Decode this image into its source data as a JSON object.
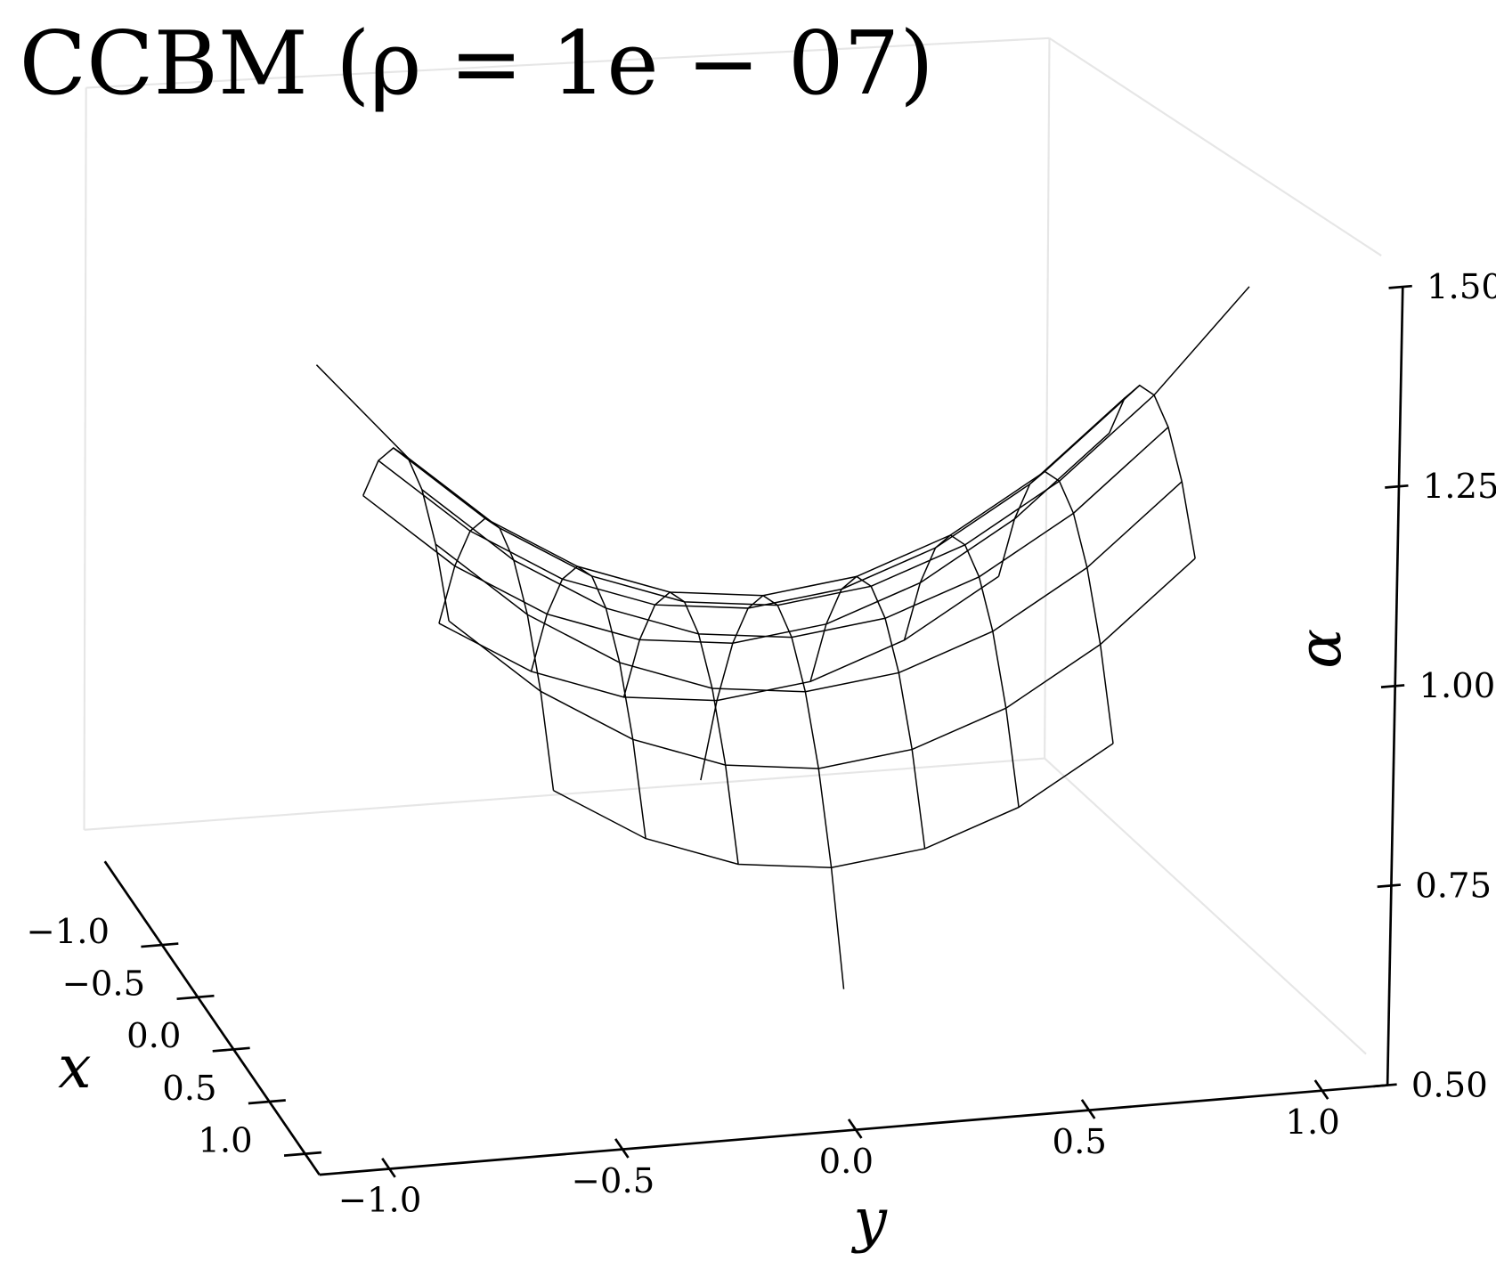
{
  "chart_data": {
    "type": "surface",
    "title": "CCBM (ρ = 1e − 07)",
    "xlabel": "x",
    "ylabel": "y",
    "zlabel": "α",
    "color": "#000000",
    "x": [
      -1,
      -0.8,
      -0.6,
      -0.4,
      -0.2,
      0,
      0.2,
      0.4,
      0.6,
      0.8,
      1
    ],
    "y": [
      -1,
      -0.8,
      -0.6,
      -0.4,
      -0.2,
      0,
      0.2,
      0.4,
      0.6,
      0.8,
      1
    ],
    "z": [
      [
        null,
        null,
        null,
        null,
        null,
        0.65,
        null,
        null,
        null,
        null,
        null
      ],
      [
        null,
        null,
        0.902,
        0.832,
        0.79,
        0.776,
        0.79,
        0.832,
        0.902,
        null,
        null
      ],
      [
        null,
        1.098,
        1.0,
        0.93,
        0.888,
        0.874,
        0.888,
        0.93,
        1.0,
        1.098,
        null
      ],
      [
        null,
        1.168,
        1.07,
        1.0,
        0.958,
        0.944,
        0.958,
        1.0,
        1.07,
        1.168,
        null
      ],
      [
        null,
        1.21,
        1.112,
        1.042,
        1.0,
        0.986,
        1.0,
        1.042,
        1.112,
        1.21,
        null
      ],
      [
        1.35,
        1.224,
        1.126,
        1.056,
        1.014,
        1.0,
        1.014,
        1.056,
        1.126,
        1.224,
        1.35
      ],
      [
        null,
        1.21,
        1.112,
        1.042,
        1.0,
        0.986,
        1.0,
        1.042,
        1.112,
        1.21,
        null
      ],
      [
        null,
        1.168,
        1.07,
        1.0,
        0.958,
        0.944,
        0.958,
        1.0,
        1.07,
        1.168,
        null
      ],
      [
        null,
        1.098,
        1.0,
        0.93,
        0.888,
        0.874,
        0.888,
        0.93,
        1.0,
        1.098,
        null
      ],
      [
        null,
        null,
        0.902,
        0.832,
        0.79,
        0.776,
        0.79,
        0.832,
        0.902,
        null,
        null
      ],
      [
        null,
        null,
        null,
        null,
        null,
        0.65,
        null,
        null,
        null,
        null,
        null
      ]
    ],
    "xlim": [
      -1.8,
      1.2
    ],
    "ylim": [
      -1.15,
      1.14
    ],
    "zlim": [
      0.5,
      1.5
    ],
    "xticks": [
      {
        "value": -1,
        "label": "−1.0"
      },
      {
        "value": -0.5,
        "label": "−0.5"
      },
      {
        "value": 0,
        "label": "0.0"
      },
      0.5,
      {
        "value": 1,
        "label": "1.0"
      }
    ],
    "yticks": [
      {
        "value": -1,
        "label": "−1.0"
      },
      {
        "value": -0.5,
        "label": "−0.5"
      },
      {
        "value": 0,
        "label": "0.0"
      },
      0.5,
      {
        "value": 1,
        "label": "1.0"
      }
    ],
    "zticks": [
      {
        "value": 0.5,
        "label": "0.50"
      },
      0.75,
      {
        "value": 1,
        "label": "1.00"
      },
      1.25,
      {
        "value": 1.5,
        "label": "1.50"
      }
    ]
  }
}
